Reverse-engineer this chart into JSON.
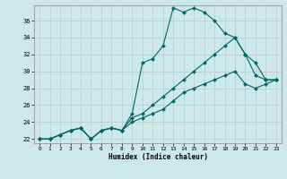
{
  "xlabel": "Humidex (Indice chaleur)",
  "background_color": "#cce8e8",
  "grid_color": "#b8d0d0",
  "line_color": "#006666",
  "xlim": [
    -0.5,
    23.5
  ],
  "ylim": [
    21.5,
    37.8
  ],
  "xticks": [
    0,
    1,
    2,
    3,
    4,
    5,
    6,
    7,
    8,
    9,
    10,
    11,
    12,
    13,
    14,
    15,
    16,
    17,
    18,
    19,
    20,
    21,
    22,
    23
  ],
  "yticks": [
    22,
    24,
    26,
    28,
    30,
    32,
    34,
    36
  ],
  "line1_y": [
    22,
    22,
    22.5,
    23,
    23.3,
    22,
    23,
    23.3,
    23.0,
    25.0,
    31.0,
    31.5,
    33.0,
    37.5,
    37.0,
    37.5,
    37.0,
    36.0,
    34.5,
    34.0,
    32.0,
    29.5,
    29.0,
    29.0
  ],
  "line2_y": [
    22,
    22,
    22.5,
    23,
    23.3,
    22,
    23,
    23.3,
    23.0,
    24.5,
    25.0,
    26.0,
    27.0,
    28.0,
    29.0,
    30.0,
    31.0,
    32.0,
    33.0,
    34.0,
    32.0,
    31.0,
    29.0,
    29.0
  ],
  "line3_y": [
    22,
    22,
    22.5,
    23,
    23.3,
    22,
    23,
    23.3,
    23.0,
    24.0,
    24.5,
    25.0,
    25.5,
    26.5,
    27.5,
    28.0,
    28.5,
    29.0,
    29.5,
    30.0,
    28.5,
    28.0,
    28.5,
    29.0
  ]
}
